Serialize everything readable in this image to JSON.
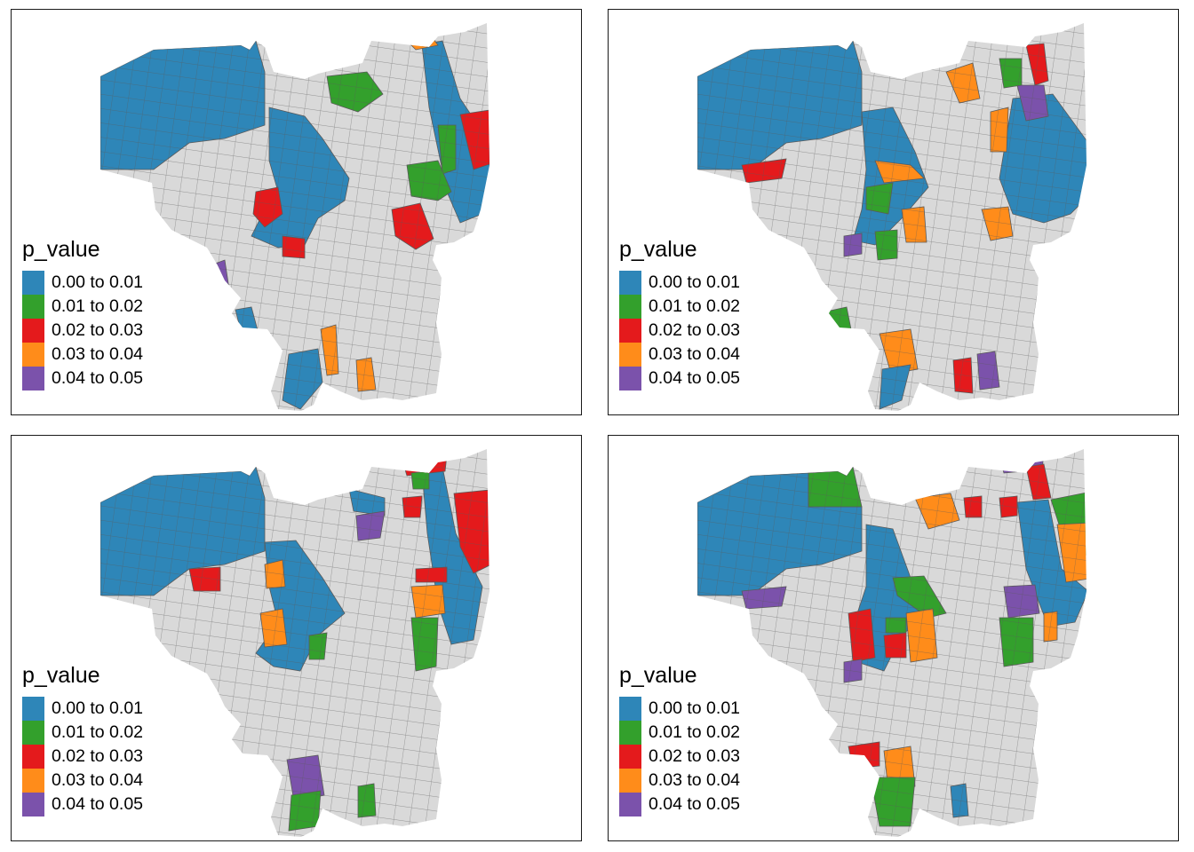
{
  "legend": {
    "title": "p_value",
    "classes": [
      {
        "label": "0.00 to 0.01",
        "color": "#2e86b8"
      },
      {
        "label": "0.01 to 0.02",
        "color": "#33a02c"
      },
      {
        "label": "0.02 to 0.03",
        "color": "#e41a1c"
      },
      {
        "label": "0.03 to 0.04",
        "color": "#ff8c1a"
      },
      {
        "label": "0.04 to 0.05",
        "color": "#7b52ab"
      }
    ]
  },
  "colors": {
    "base_fill": "#d9d9d9",
    "border": "#5a5a5a"
  }
}
